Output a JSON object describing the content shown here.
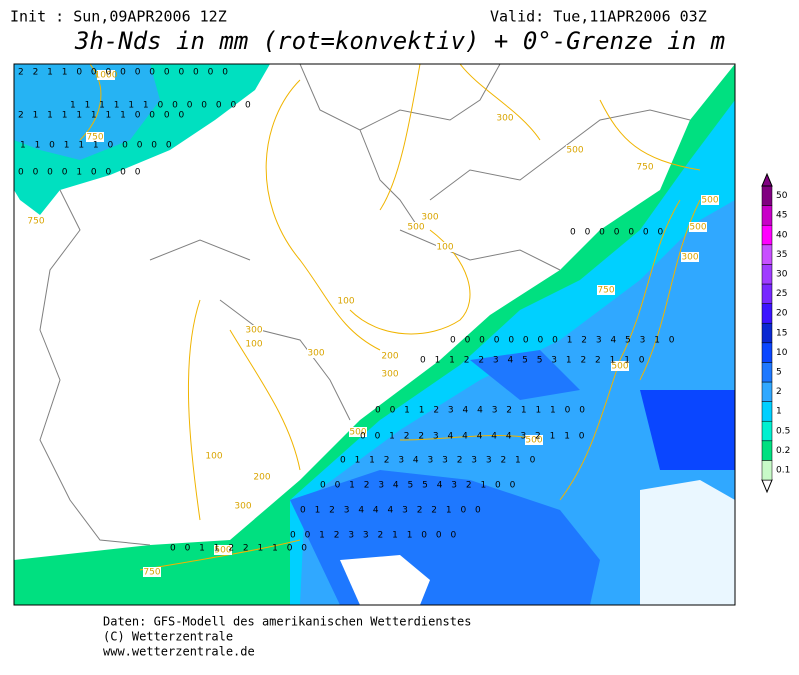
{
  "header": {
    "init": "Init : Sun,09APR2006 12Z",
    "valid": "Valid: Tue,11APR2006 03Z",
    "title": "3h-Nds in mm (rot=konvektiv) + 0°-Grenze in m"
  },
  "legend": {
    "labels": [
      0.1,
      0.2,
      0.5,
      1,
      2,
      5,
      10,
      15,
      20,
      25,
      30,
      35,
      40,
      45,
      50
    ],
    "colors": [
      "#c8fac8",
      "#00e080",
      "#00f0d0",
      "#00d0ff",
      "#30a8ff",
      "#1e78ff",
      "#0a46ff",
      "#0a28d2",
      "#3c14ff",
      "#7828ff",
      "#a03cff",
      "#c850ff",
      "#ff00ff",
      "#c800c8",
      "#800080"
    ]
  },
  "map": {
    "contour_labels": [
      "1000",
      "750",
      "750",
      "300",
      "500",
      "750",
      "300",
      "500",
      "100",
      "100",
      "300",
      "100",
      "300",
      "200",
      "300",
      "500",
      "100",
      "200",
      "300",
      "500",
      "750",
      "500",
      "300",
      "500",
      "500",
      "750",
      "500"
    ],
    "digit_rows": [
      "2 2 1 1 0 0 0 0 0 0 0 0 0 0 0",
      "1 1 1 1 1 1 0 0 0 0 0 0 0",
      "2 1 1 1 1 1 1 1 0 0 0 0",
      "1 1 0 1 1 1 0 0 0 0 0",
      "0 0 0 0 1 0 0 0 0",
      "0 0 0 0 0 0 0",
      "0 0 0 0 0 0 0 0 1 2 3 4 5 3 1 0",
      "0 1 1 2 2 3 4 5 5 3 1 2 2 1 1 0",
      "0 0 1 1 2 3 4 4 3 2 1 1 1 0 0",
      "0 0 1 2 2 3 4 4 4 4 4 3 2 1 1 0",
      "0 1 1 2 3 4 3 3 2 3 3 2 1 0",
      "0 0 1 2 3 4 5 5 4 3 2 1 0 0",
      "0 1 2 3 4 4 4 3 2 2 1 0 0",
      "0 0 1 2 3 3 2 1 1 0 0 0",
      "0 0 1 1 2 2 1 1 0 0"
    ]
  },
  "footer": {
    "lines": [
      "Daten: GFS-Modell des amerikanischen Wetterdienstes",
      "(C) Wetterzentrale",
      "www.wetterzentrale.de"
    ]
  }
}
